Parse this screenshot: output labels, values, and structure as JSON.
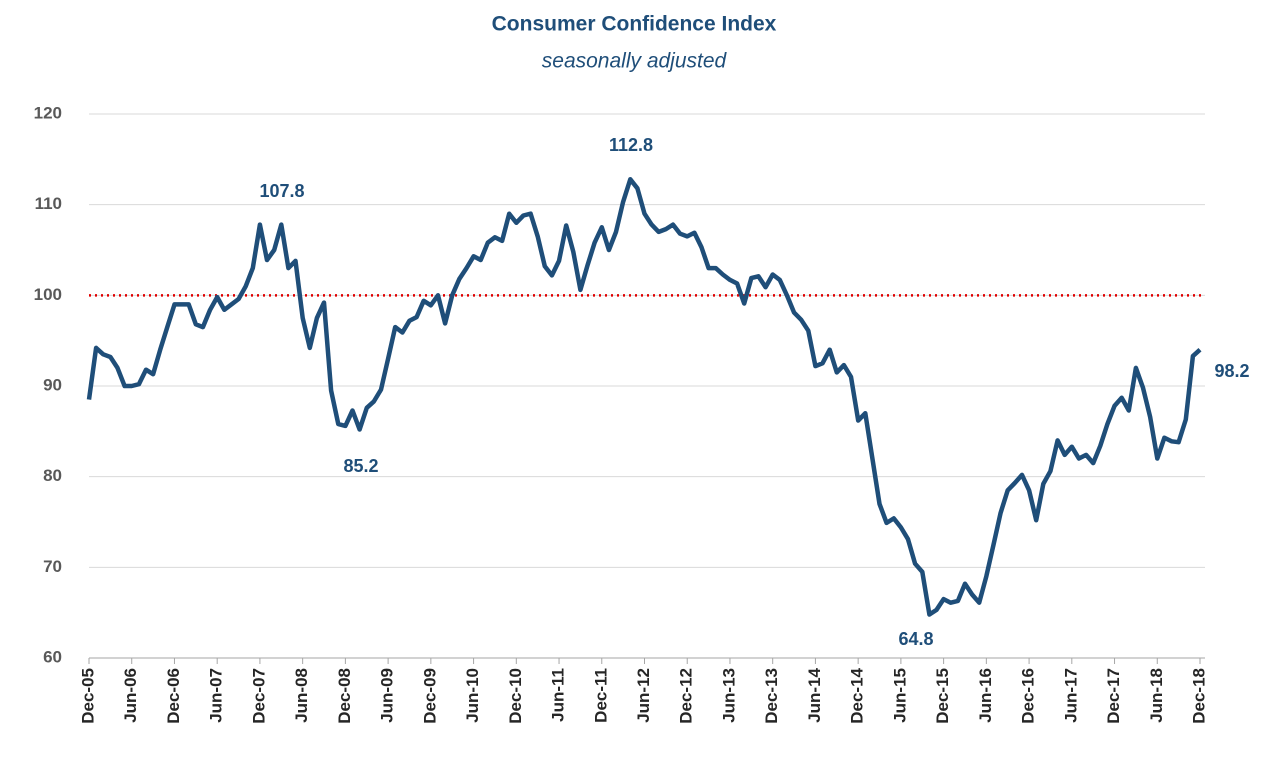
{
  "chart_data": {
    "type": "line",
    "title": "Consumer Confidence Index",
    "subtitle": "seasonally adjusted",
    "categories": [
      "Dec-05",
      null,
      null,
      null,
      null,
      null,
      "Jun-06",
      null,
      null,
      null,
      null,
      null,
      "Dec-06",
      null,
      null,
      null,
      null,
      null,
      "Jun-07",
      null,
      null,
      null,
      null,
      null,
      "Dec-07",
      null,
      null,
      null,
      null,
      null,
      "Jun-08",
      null,
      null,
      null,
      null,
      null,
      "Dec-08",
      null,
      null,
      null,
      null,
      null,
      "Jun-09",
      null,
      null,
      null,
      null,
      null,
      "Dec-09",
      null,
      null,
      null,
      null,
      null,
      "Jun-10",
      null,
      null,
      null,
      null,
      null,
      "Dec-10",
      null,
      null,
      null,
      null,
      null,
      "Jun-11",
      null,
      null,
      null,
      null,
      null,
      "Dec-11",
      null,
      null,
      null,
      null,
      null,
      "Jun-12",
      null,
      null,
      null,
      null,
      null,
      "Dec-12",
      null,
      null,
      null,
      null,
      null,
      "Jun-13",
      null,
      null,
      null,
      null,
      null,
      "Dec-13",
      null,
      null,
      null,
      null,
      null,
      "Jun-14",
      null,
      null,
      null,
      null,
      null,
      "Dec-14",
      null,
      null,
      null,
      null,
      null,
      "Jun-15",
      null,
      null,
      null,
      null,
      null,
      "Dec-15",
      null,
      null,
      null,
      null,
      null,
      "Jun-16",
      null,
      null,
      null,
      null,
      null,
      "Dec-16",
      null,
      null,
      null,
      null,
      null,
      "Jun-17",
      null,
      null,
      null,
      null,
      null,
      "Dec-17",
      null,
      null,
      null,
      null,
      null,
      "Jun-18",
      null,
      null,
      null,
      null,
      null,
      "Dec-18"
    ],
    "values": [
      88.5,
      94.2,
      93.5,
      93.2,
      92,
      90,
      90,
      90.2,
      91.8,
      91.3,
      94,
      96.5,
      99,
      99,
      99,
      96.8,
      96.5,
      98.4,
      99.8,
      98.4,
      99,
      99.6,
      101,
      103,
      107.8,
      103.9,
      105,
      107.8,
      103,
      103.8,
      97.5,
      94.2,
      97.5,
      99.2,
      89.5,
      85.8,
      85.6,
      87.3,
      85.2,
      87.6,
      88.3,
      89.6,
      93,
      96.5,
      95.9,
      97.2,
      97.6,
      99.4,
      98.9,
      100,
      96.9,
      100,
      101.8,
      103,
      104.3,
      103.9,
      105.8,
      106.4,
      106,
      109,
      108,
      108.8,
      109,
      106.5,
      103.2,
      102.2,
      103.8,
      107.7,
      104.8,
      100.6,
      103.3,
      105.8,
      107.5,
      105,
      107,
      110.3,
      112.8,
      111.8,
      109,
      107.8,
      107,
      107.3,
      107.8,
      106.8,
      106.5,
      106.9,
      105.3,
      103,
      103,
      102.3,
      101.7,
      101.3,
      99.1,
      101.9,
      102.1,
      100.9,
      102.3,
      101.7,
      100,
      98.1,
      97.3,
      96.1,
      92.2,
      92.5,
      94,
      91.5,
      92.3,
      91,
      86.2,
      87,
      82,
      77,
      74.9,
      75.4,
      74.4,
      73.1,
      70.4,
      69.5,
      64.8,
      65.3,
      66.5,
      66.1,
      66.3,
      68.2,
      67,
      66.1,
      69,
      72.5,
      76,
      78.5,
      79.3,
      80.2,
      78.5,
      75.2,
      79.2,
      80.6,
      84,
      82.4,
      83.3,
      82,
      82.4,
      81.5,
      83.4,
      85.8,
      87.8,
      88.7,
      87.3,
      92,
      89.8,
      86.6,
      82,
      84.3,
      83.9,
      83.8,
      86.3,
      93.3,
      94
    ],
    "color": "#1f4e79",
    "ylim": [
      60,
      120
    ],
    "yticks": [
      60,
      70,
      80,
      90,
      100,
      110,
      120
    ],
    "grid": true,
    "reference_line": {
      "value": 100,
      "color": "#e00000"
    },
    "annotations": [
      "107.8",
      "85.2",
      "112.8",
      "64.8",
      "98.2"
    ]
  }
}
